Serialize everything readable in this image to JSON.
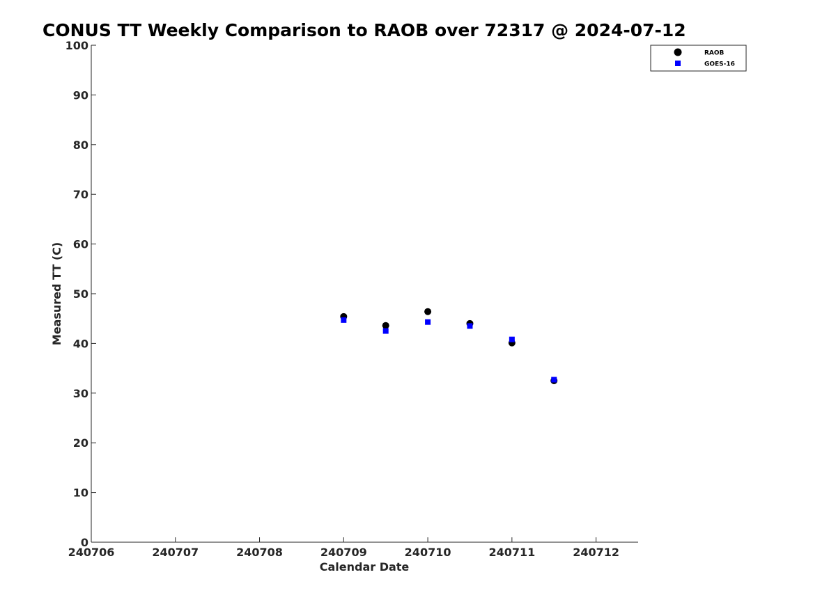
{
  "chart_data": {
    "type": "scatter",
    "title": "CONUS TT Weekly Comparison to RAOB over 72317 @ 2024-07-12",
    "xlabel": "Calendar Date",
    "ylabel": "Measured TT (C)",
    "x_tick_labels": [
      "240706",
      "240707",
      "240708",
      "240709",
      "240710",
      "240711",
      "240712"
    ],
    "y_tick_labels": [
      "0",
      "10",
      "20",
      "30",
      "40",
      "50",
      "60",
      "70",
      "80",
      "90",
      "100"
    ],
    "ylim": [
      0,
      100
    ],
    "grid": false,
    "legend_position": "top-right",
    "series": [
      {
        "name": "RAOB",
        "marker": "circle",
        "color": "#000000",
        "points": [
          {
            "x": "2024-07-09 00:00",
            "y": 45.4
          },
          {
            "x": "2024-07-09 12:00",
            "y": 43.6
          },
          {
            "x": "2024-07-10 00:00",
            "y": 46.4
          },
          {
            "x": "2024-07-10 12:00",
            "y": 44.0
          },
          {
            "x": "2024-07-11 00:00",
            "y": 40.1
          },
          {
            "x": "2024-07-11 12:00",
            "y": 32.5
          }
        ]
      },
      {
        "name": "GOES-16",
        "marker": "square",
        "color": "#0000ff",
        "points": [
          {
            "x": "2024-07-09 00:00",
            "y": 44.7
          },
          {
            "x": "2024-07-09 12:00",
            "y": 42.5
          },
          {
            "x": "2024-07-10 00:00",
            "y": 44.3
          },
          {
            "x": "2024-07-10 12:00",
            "y": 43.5
          },
          {
            "x": "2024-07-11 00:00",
            "y": 40.8
          },
          {
            "x": "2024-07-11 12:00",
            "y": 32.7
          }
        ]
      }
    ]
  }
}
